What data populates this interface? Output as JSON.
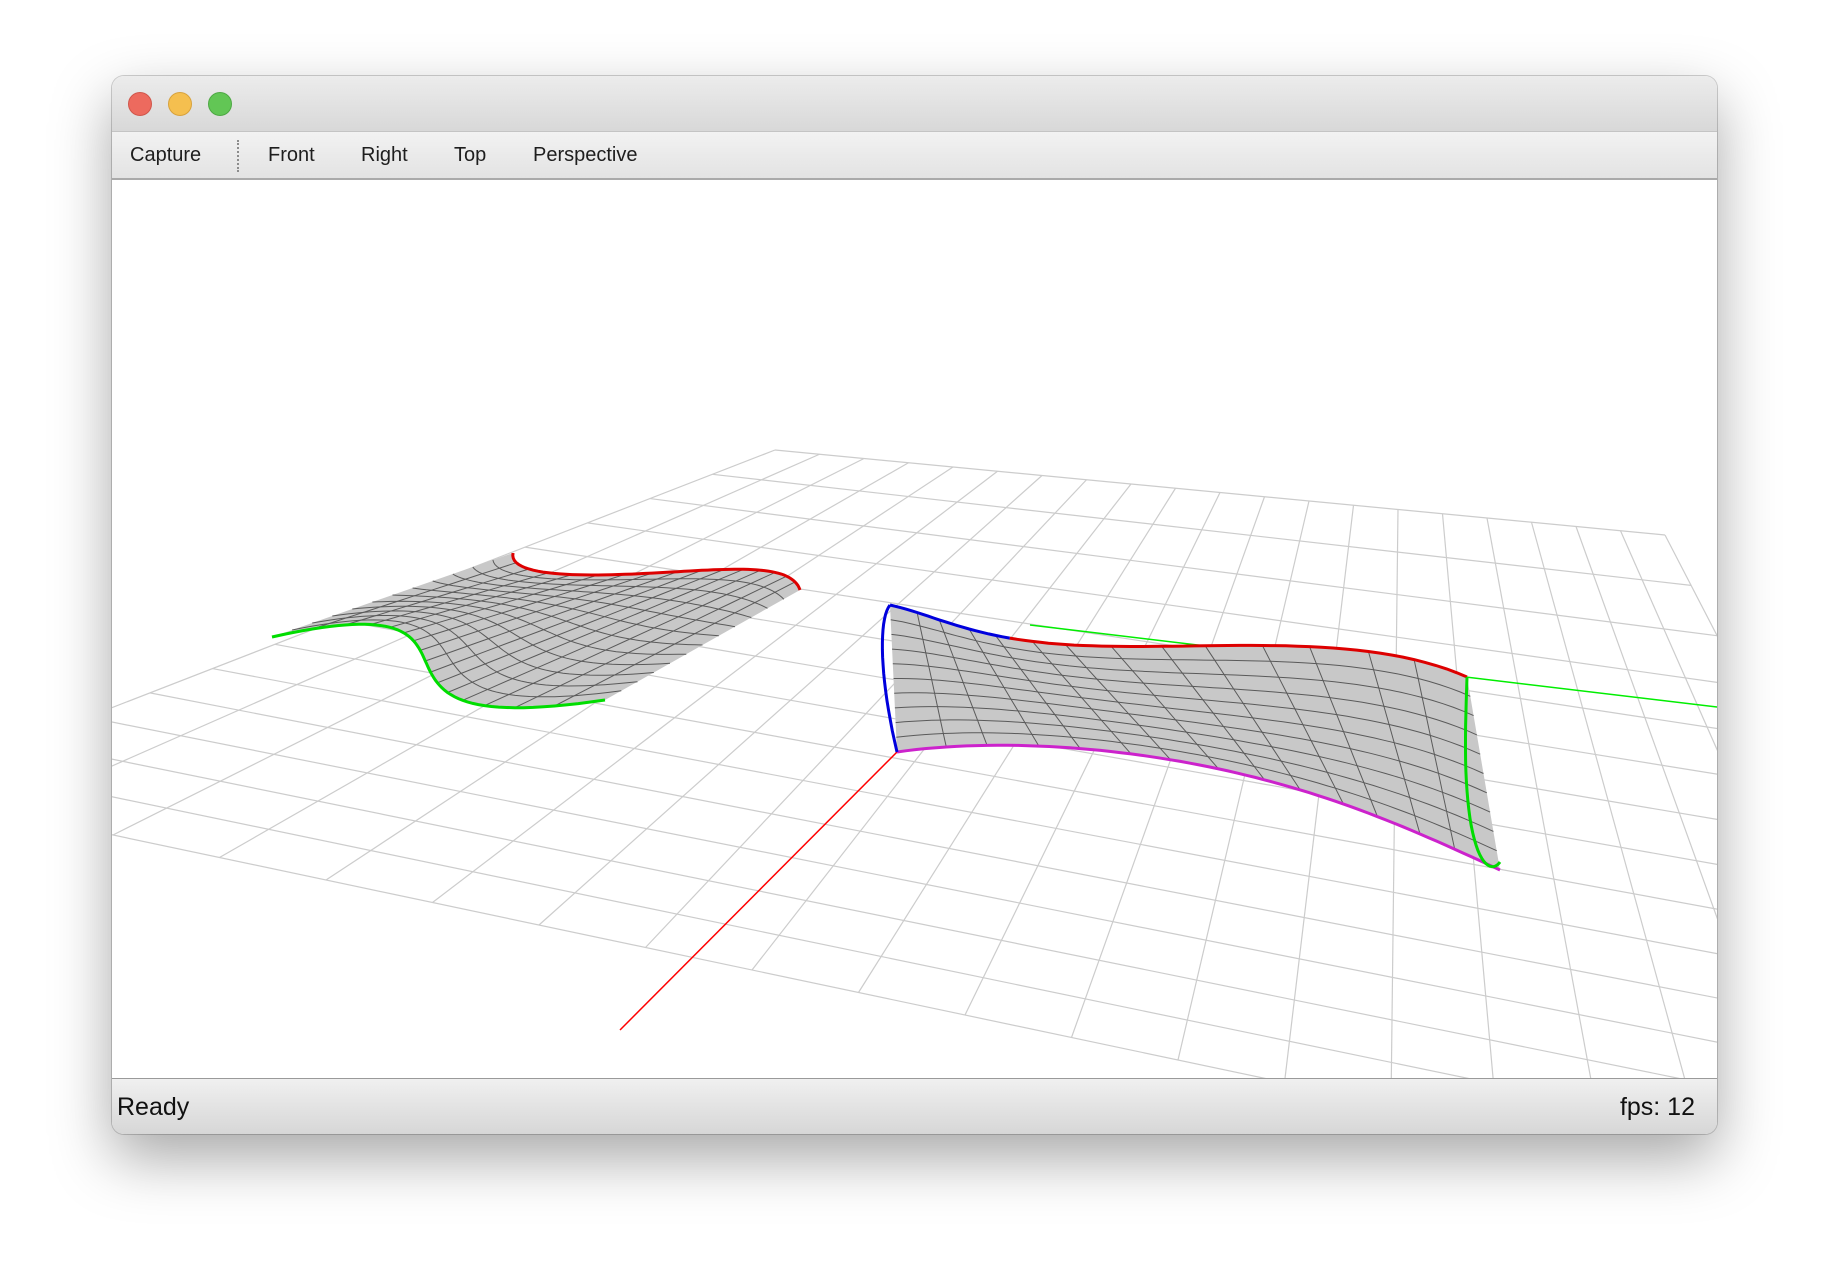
{
  "window": {
    "controls": {
      "close": "close-button",
      "minimize": "minimize-button",
      "maximize": "zoom-button"
    }
  },
  "toolbar": {
    "capture_label": "Capture",
    "views": [
      {
        "name": "front",
        "label": "Front"
      },
      {
        "name": "right",
        "label": "Right"
      },
      {
        "name": "top",
        "label": "Top"
      },
      {
        "name": "perspective",
        "label": "Perspective"
      }
    ]
  },
  "scene": {
    "background": "#ffffff",
    "grid_color": "#cccccc",
    "surface_fill": "#c8c8c8",
    "mesh_color": "#5a5a5a",
    "x_axis_color": "#ff0000",
    "y_axis_color": "#00ee00",
    "curve_colors": {
      "u0": "#00dd00",
      "u1": "#dd0000",
      "v0": "#0000dd",
      "v1_surface2": "#cc22cc"
    }
  },
  "status": {
    "message": "Ready",
    "fps": "fps: 12"
  }
}
